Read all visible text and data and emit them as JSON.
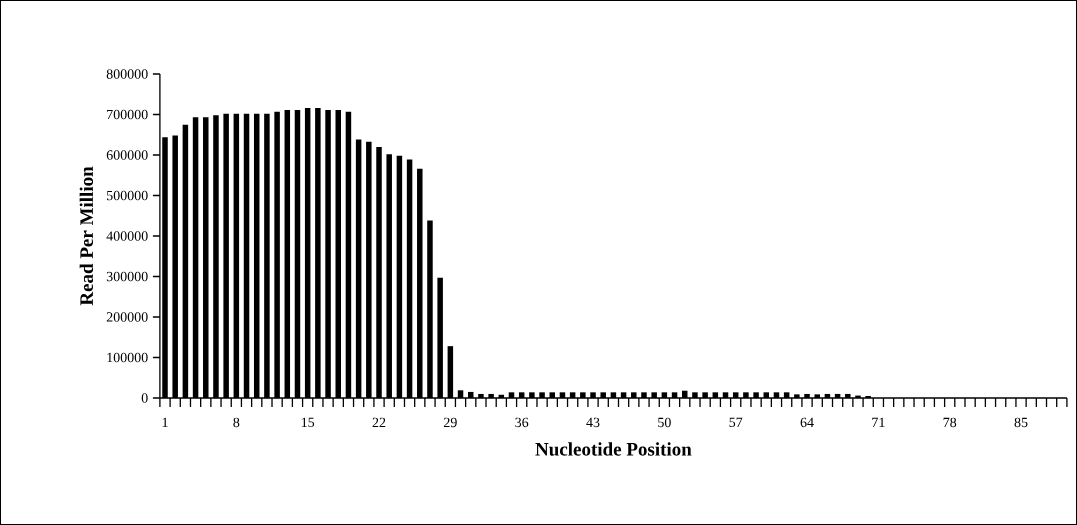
{
  "chart_data": {
    "type": "bar",
    "xlabel": "Nucleotide Position",
    "ylabel": "Read Per Million",
    "color": "#000000",
    "categories": [
      "1",
      null,
      null,
      null,
      null,
      null,
      null,
      "8",
      null,
      null,
      null,
      null,
      null,
      null,
      "15",
      null,
      null,
      null,
      null,
      null,
      null,
      "22",
      null,
      null,
      null,
      null,
      null,
      null,
      "29",
      null,
      null,
      null,
      null,
      null,
      null,
      "36",
      null,
      null,
      null,
      null,
      null,
      null,
      "43",
      null,
      null,
      null,
      null,
      null,
      null,
      "50",
      null,
      null,
      null,
      null,
      null,
      null,
      "57",
      null,
      null,
      null,
      null,
      null,
      null,
      "64",
      null,
      null,
      null,
      null,
      null,
      null,
      "71",
      null,
      null,
      null,
      null,
      null,
      null,
      "78",
      null,
      null,
      null,
      null,
      null,
      null,
      "85",
      null,
      null,
      null,
      null
    ],
    "values": [
      644000,
      648000,
      675000,
      693000,
      693000,
      698000,
      702000,
      702000,
      702000,
      702000,
      702000,
      707000,
      711000,
      711000,
      716000,
      716000,
      711000,
      711000,
      707000,
      638000,
      633000,
      620000,
      602000,
      598000,
      589000,
      566000,
      438000,
      297000,
      128000,
      19000,
      15000,
      10000,
      10000,
      8000,
      14000,
      14000,
      14000,
      14000,
      14000,
      14000,
      14000,
      14000,
      14000,
      14000,
      14000,
      14000,
      14000,
      14000,
      14000,
      14000,
      14000,
      18000,
      14000,
      14000,
      14000,
      14000,
      14000,
      14000,
      14000,
      14000,
      14000,
      14000,
      9000,
      10000,
      9000,
      10000,
      10000,
      10000,
      6000,
      5000,
      0,
      0,
      0,
      0,
      0,
      0,
      0,
      0,
      0,
      0,
      0,
      0,
      0,
      0,
      0,
      0,
      0,
      0,
      0
    ],
    "ylim": [
      0,
      800000
    ],
    "yticks": [
      0,
      100000,
      200000,
      300000,
      400000,
      500000,
      600000,
      700000,
      800000
    ]
  }
}
